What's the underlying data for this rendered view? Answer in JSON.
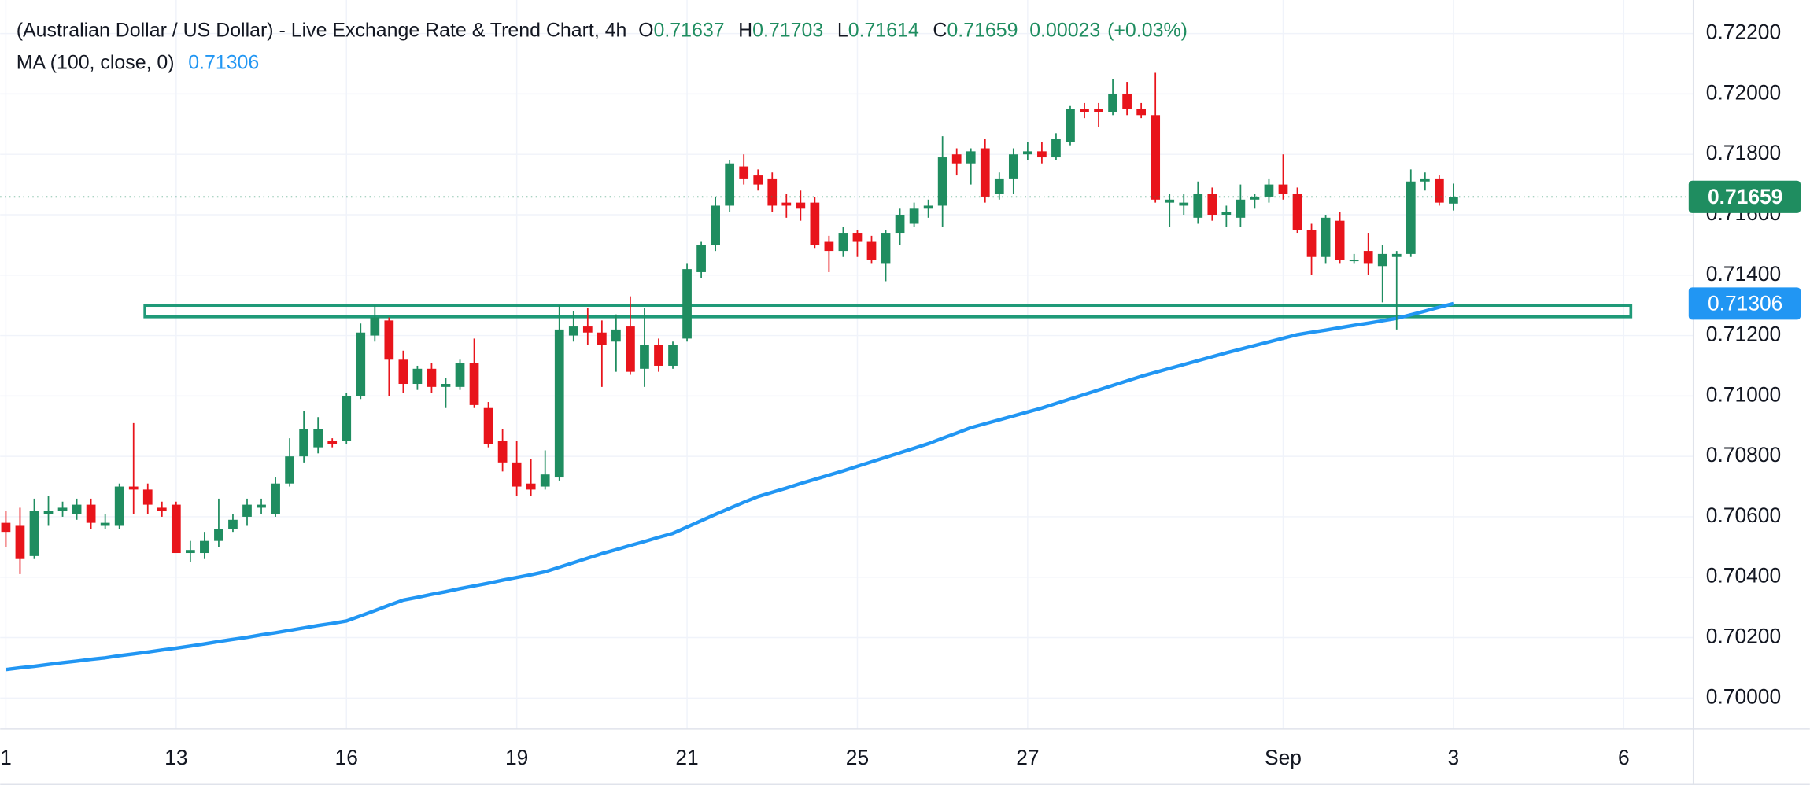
{
  "chart_data": {
    "type": "candlestick",
    "title": "(Australian Dollar / US Dollar) - Live Exchange Rate & Trend Chart, 4h",
    "ohlc_labels": [
      "O",
      "H",
      "L",
      "C"
    ],
    "change": "0.00023",
    "change_percent": "(+0.03%)",
    "up_color": "#1f8d60",
    "down_color": "#e8141b",
    "open": [
      0.7058,
      0.7057,
      0.7047,
      0.7061,
      0.7062,
      0.7061,
      0.7064,
      0.7057,
      0.7057,
      0.707,
      0.7069,
      0.7063,
      0.7064,
      0.7048,
      0.7048,
      0.7052,
      0.7056,
      0.706,
      0.7063,
      0.7061,
      0.7071,
      0.708,
      0.7083,
      0.7085,
      0.7085,
      0.71,
      0.712,
      0.7125,
      0.7112,
      0.7104,
      0.7109,
      0.7103,
      0.7103,
      0.7111,
      0.7096,
      0.7085,
      0.7078,
      0.7071,
      0.707,
      0.7073,
      0.712,
      0.7123,
      0.7121,
      0.7118,
      0.7123,
      0.7109,
      0.7117,
      0.711,
      0.7119,
      0.7141,
      0.715,
      0.7163,
      0.7176,
      0.7173,
      0.7172,
      0.7164,
      0.7164,
      0.7164,
      0.7151,
      0.7148,
      0.7154,
      0.7151,
      0.7144,
      0.7154,
      0.7157,
      0.7162,
      0.7163,
      0.718,
      0.7177,
      0.7182,
      0.7167,
      0.7172,
      0.718,
      0.7181,
      0.7179,
      0.7184,
      0.7195,
      0.7195,
      0.7194,
      0.72,
      0.7195,
      0.7193,
      0.7164,
      0.7163,
      0.7159,
      0.7167,
      0.716,
      0.7159,
      0.7165,
      0.7166,
      0.717,
      0.7167,
      0.7155,
      0.7146,
      0.7158,
      0.7145,
      0.7148,
      0.7143,
      0.7146,
      0.7147,
      0.7171,
      0.7172,
      0.71637
    ],
    "high": [
      0.7062,
      0.7063,
      0.7066,
      0.7067,
      0.7065,
      0.7066,
      0.7066,
      0.7061,
      0.7071,
      0.7091,
      0.7071,
      0.7065,
      0.7065,
      0.7052,
      0.7055,
      0.7066,
      0.7061,
      0.7066,
      0.7066,
      0.7073,
      0.7086,
      0.7095,
      0.7093,
      0.7086,
      0.7101,
      0.7124,
      0.713,
      0.7126,
      0.7115,
      0.711,
      0.7111,
      0.7106,
      0.7112,
      0.7119,
      0.7098,
      0.7089,
      0.7085,
      0.7079,
      0.7082,
      0.713,
      0.7128,
      0.7129,
      0.7125,
      0.7127,
      0.7133,
      0.7129,
      0.7119,
      0.7118,
      0.7144,
      0.7151,
      0.7166,
      0.7178,
      0.718,
      0.7175,
      0.7174,
      0.7167,
      0.7168,
      0.7166,
      0.7153,
      0.7156,
      0.7155,
      0.7153,
      0.7155,
      0.7162,
      0.7164,
      0.7165,
      0.7186,
      0.7182,
      0.7182,
      0.7185,
      0.7174,
      0.7182,
      0.7184,
      0.7184,
      0.7187,
      0.7196,
      0.7197,
      0.7197,
      0.7205,
      0.7204,
      0.7197,
      0.7207,
      0.7167,
      0.7167,
      0.7171,
      0.7169,
      0.7163,
      0.717,
      0.7167,
      0.7172,
      0.718,
      0.7169,
      0.7157,
      0.716,
      0.7161,
      0.7147,
      0.7154,
      0.715,
      0.7148,
      0.7175,
      0.7174,
      0.7173,
      0.71703
    ],
    "low": [
      0.705,
      0.7041,
      0.7046,
      0.7057,
      0.706,
      0.7059,
      0.7056,
      0.7056,
      0.7056,
      0.7061,
      0.7061,
      0.706,
      0.7048,
      0.7045,
      0.7046,
      0.705,
      0.7055,
      0.7057,
      0.7061,
      0.706,
      0.707,
      0.7078,
      0.7081,
      0.7083,
      0.7084,
      0.7099,
      0.7118,
      0.71,
      0.7101,
      0.7102,
      0.7101,
      0.7096,
      0.7102,
      0.7096,
      0.7083,
      0.7075,
      0.7067,
      0.7067,
      0.7069,
      0.7072,
      0.7118,
      0.7117,
      0.7103,
      0.7108,
      0.7107,
      0.7103,
      0.7108,
      0.7109,
      0.7118,
      0.7139,
      0.7148,
      0.7161,
      0.717,
      0.7168,
      0.7161,
      0.7159,
      0.7158,
      0.7149,
      0.7141,
      0.7146,
      0.7146,
      0.7144,
      0.7138,
      0.715,
      0.7156,
      0.7159,
      0.7156,
      0.7173,
      0.717,
      0.7164,
      0.7165,
      0.7167,
      0.7178,
      0.7177,
      0.7178,
      0.7183,
      0.7192,
      0.7189,
      0.7193,
      0.7193,
      0.7192,
      0.7164,
      0.7156,
      0.716,
      0.7157,
      0.7158,
      0.7156,
      0.7156,
      0.7162,
      0.7164,
      0.7165,
      0.7154,
      0.714,
      0.7144,
      0.7144,
      0.7144,
      0.714,
      0.7131,
      0.7122,
      0.7146,
      0.7168,
      0.7163,
      0.71614
    ],
    "close": [
      0.7055,
      0.7046,
      0.7062,
      0.7062,
      0.7063,
      0.7064,
      0.7058,
      0.7058,
      0.707,
      0.7069,
      0.7064,
      0.7062,
      0.7048,
      0.7049,
      0.7052,
      0.7056,
      0.7059,
      0.7064,
      0.7064,
      0.7071,
      0.708,
      0.7089,
      0.7089,
      0.7084,
      0.71,
      0.7121,
      0.7126,
      0.7112,
      0.7104,
      0.7109,
      0.7103,
      0.7104,
      0.7111,
      0.7097,
      0.7084,
      0.7078,
      0.707,
      0.7069,
      0.7074,
      0.7122,
      0.7123,
      0.7121,
      0.7117,
      0.7122,
      0.7108,
      0.7117,
      0.711,
      0.7117,
      0.7142,
      0.715,
      0.7163,
      0.7177,
      0.7172,
      0.717,
      0.7163,
      0.7163,
      0.7162,
      0.715,
      0.7148,
      0.7154,
      0.7151,
      0.7145,
      0.7154,
      0.716,
      0.7162,
      0.7163,
      0.7179,
      0.7177,
      0.7181,
      0.7166,
      0.7172,
      0.718,
      0.7181,
      0.7179,
      0.7185,
      0.7195,
      0.7194,
      0.7194,
      0.72,
      0.7195,
      0.7193,
      0.7165,
      0.7165,
      0.7164,
      0.7167,
      0.716,
      0.7161,
      0.7165,
      0.7166,
      0.717,
      0.7167,
      0.7155,
      0.7146,
      0.7159,
      0.7145,
      0.7145,
      0.7144,
      0.7147,
      0.7147,
      0.7171,
      0.7172,
      0.7164,
      0.71659
    ],
    "ma": {
      "name": "MA (100, close, 0)",
      "color": "#2196f3",
      "values": [
        0.70094,
        0.701,
        0.70105,
        0.70111,
        0.70117,
        0.70122,
        0.70128,
        0.70133,
        0.7014,
        0.70146,
        0.70152,
        0.70159,
        0.70165,
        0.70172,
        0.70179,
        0.70187,
        0.70194,
        0.70201,
        0.70209,
        0.70216,
        0.70224,
        0.70232,
        0.7024,
        0.70247,
        0.70255,
        0.70272,
        0.70289,
        0.70307,
        0.70324,
        0.70333,
        0.70343,
        0.70352,
        0.70362,
        0.70371,
        0.7038,
        0.7039,
        0.70399,
        0.70408,
        0.70418,
        0.70433,
        0.70448,
        0.70463,
        0.70478,
        0.70491,
        0.70505,
        0.70518,
        0.70532,
        0.70545,
        0.70566,
        0.70587,
        0.70608,
        0.70628,
        0.70648,
        0.70667,
        0.70681,
        0.70695,
        0.7071,
        0.70724,
        0.70738,
        0.70752,
        0.70767,
        0.70782,
        0.70797,
        0.70812,
        0.70827,
        0.70842,
        0.7086,
        0.70877,
        0.70895,
        0.70908,
        0.70921,
        0.70934,
        0.70947,
        0.7096,
        0.70975,
        0.7099,
        0.71005,
        0.7102,
        0.71035,
        0.7105,
        0.71065,
        0.71078,
        0.71091,
        0.71104,
        0.71117,
        0.7113,
        0.71143,
        0.71155,
        0.71167,
        0.71179,
        0.71191,
        0.71203,
        0.71211,
        0.71218,
        0.71226,
        0.71234,
        0.71241,
        0.71249,
        0.71257,
        0.71269,
        0.71281,
        0.71294,
        0.71306
      ]
    },
    "zone": {
      "color": "#1f9a78",
      "x": [
        9.8,
        114.5
      ],
      "y": [
        0.71262,
        0.713
      ]
    },
    "xlim": [
      -0.4,
      118.9
    ],
    "xticks": [
      {
        "value": 0,
        "label": "1"
      },
      {
        "value": 12,
        "label": "13"
      },
      {
        "value": 24,
        "label": "16"
      },
      {
        "value": 36,
        "label": "19"
      },
      {
        "value": 48,
        "label": "21"
      },
      {
        "value": 60,
        "label": "25"
      },
      {
        "value": 72,
        "label": "27"
      },
      {
        "value": 90,
        "label": "Sep"
      },
      {
        "value": 102,
        "label": "3"
      },
      {
        "value": 114,
        "label": "6"
      }
    ],
    "ylim": [
      0.69897,
      0.72311
    ],
    "yticks": [
      {
        "value": 0.7,
        "label": "0.70000"
      },
      {
        "value": 0.702,
        "label": "0.70200"
      },
      {
        "value": 0.704,
        "label": "0.70400"
      },
      {
        "value": 0.706,
        "label": "0.70600"
      },
      {
        "value": 0.708,
        "label": "0.70800"
      },
      {
        "value": 0.71,
        "label": "0.71000"
      },
      {
        "value": 0.712,
        "label": "0.71200"
      },
      {
        "value": 0.714,
        "label": "0.71400"
      },
      {
        "value": 0.716,
        "label": "0.71600"
      },
      {
        "value": 0.718,
        "label": "0.71800"
      },
      {
        "value": 0.72,
        "label": "0.72000"
      },
      {
        "value": 0.722,
        "label": "0.72200"
      }
    ],
    "grid": true
  }
}
